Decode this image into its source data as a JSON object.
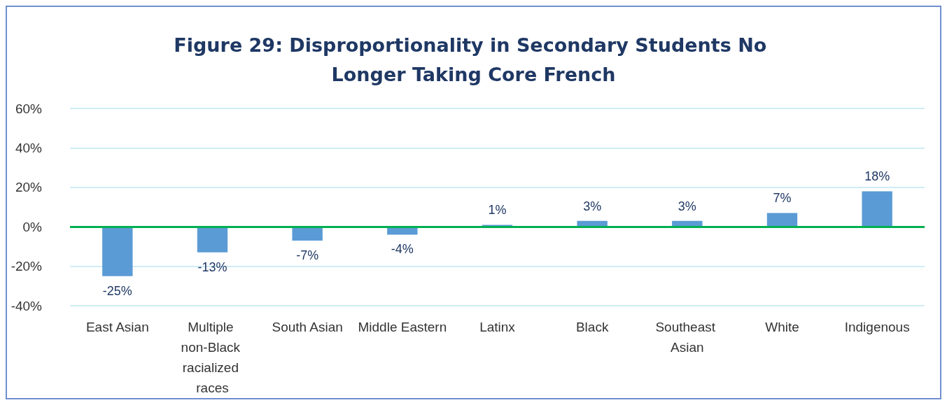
{
  "chart_data": {
    "type": "bar",
    "title": "Figure 29: Disproportionality in Secondary Students No Longer Taking Core French",
    "categories": [
      "East Asian",
      "Multiple non-Black racialized races",
      "South Asian",
      "Middle Eastern",
      "Latinx",
      "Black",
      "Southeast Asian",
      "White",
      "Indigenous"
    ],
    "values": [
      -25,
      -13,
      -7,
      -4,
      1,
      3,
      3,
      7,
      18
    ],
    "value_labels": [
      "-25%",
      "-13%",
      "-7%",
      "-4%",
      "1%",
      "3%",
      "3%",
      "7%",
      "18%"
    ],
    "color": "#5b9bd5",
    "ylim": [
      -40,
      60
    ],
    "yticks": [
      {
        "value": -40,
        "label": "-40%"
      },
      {
        "value": -20,
        "label": "-20%"
      },
      {
        "value": 0,
        "label": "0%"
      },
      {
        "value": 20,
        "label": "20%"
      },
      {
        "value": 40,
        "label": "40%"
      },
      {
        "value": 60,
        "label": "60%"
      }
    ],
    "grid": "y",
    "ref_lines": [
      {
        "axis": "y",
        "value": 0,
        "label": null,
        "color": "#00b050"
      }
    ]
  }
}
